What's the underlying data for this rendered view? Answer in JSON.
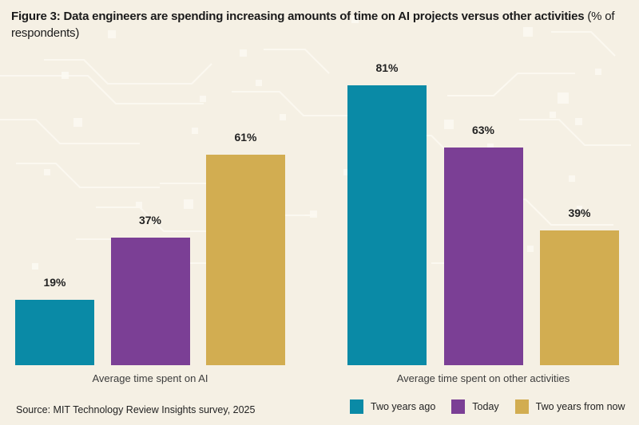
{
  "title": {
    "bold": "Figure 3: Data engineers are spending increasing amounts of time on AI projects versus other activities",
    "suffix": " (% of respondents)"
  },
  "chart_data": {
    "type": "bar",
    "groups": [
      "Average time spent on AI",
      "Average time spent on other activities"
    ],
    "categories": [
      "Two years ago",
      "Today",
      "Two years from now"
    ],
    "series": [
      {
        "name": "Two years ago",
        "color": "#0a8aa6",
        "values": [
          19,
          81
        ]
      },
      {
        "name": "Today",
        "color": "#7b3f95",
        "values": [
          37,
          63
        ]
      },
      {
        "name": "Two years from now",
        "color": "#d2ad51",
        "values": [
          61,
          39
        ]
      }
    ],
    "value_suffix": "%",
    "value_labels": true,
    "ylim": [
      0,
      100
    ],
    "grid": false,
    "legend_position": "bottom-right"
  },
  "legend": {
    "items": [
      {
        "label": "Two years ago",
        "color": "#0a8aa6"
      },
      {
        "label": "Today",
        "color": "#7b3f95"
      },
      {
        "label": "Two years from now",
        "color": "#d2ad51"
      }
    ]
  },
  "footer": {
    "source": "Source: MIT Technology Review Insights survey, 2025"
  },
  "colors": {
    "background": "#f5f0e4",
    "pattern": "#fcf9f1",
    "text": "#1a1a1a"
  }
}
